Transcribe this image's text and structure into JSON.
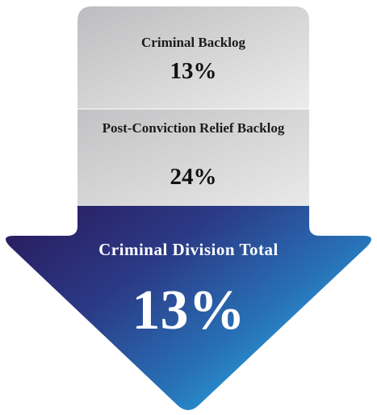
{
  "items": [
    {
      "label": "Criminal Backlog",
      "value": "13%"
    },
    {
      "label": "Post-Conviction Relief Backlog",
      "value": "24%"
    }
  ],
  "total": {
    "label": "Criminal Division Total",
    "value": "13%"
  }
}
